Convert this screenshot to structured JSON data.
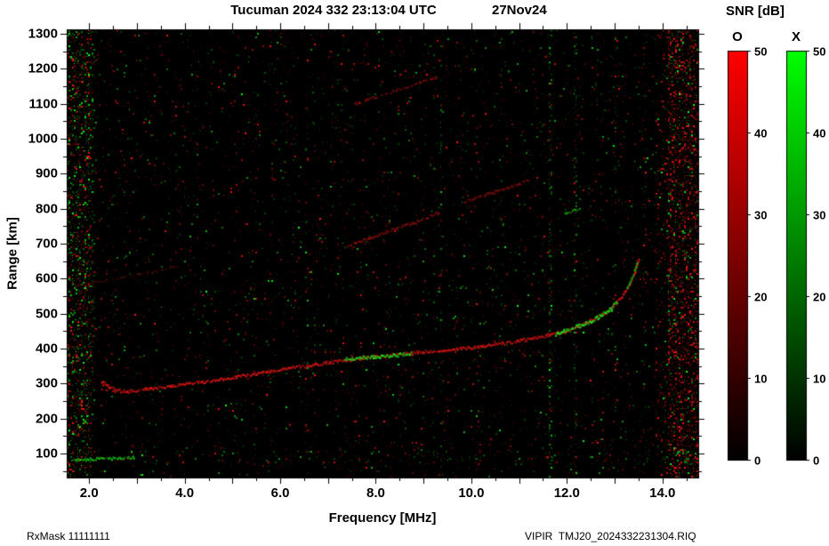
{
  "header": {
    "title": "Tucuman 2024 332 23:13:04 UTC",
    "date": "27Nov24"
  },
  "footer": {
    "left": "RxMask 11111111",
    "right": "VIPIR  TMJ20_2024332231304.RIQ"
  },
  "colorbar": {
    "title": "SNR [dB]",
    "range": [
      0,
      50
    ],
    "ticks": [
      "0",
      "10",
      "20",
      "30",
      "40",
      "50"
    ],
    "bars": [
      {
        "label": "O",
        "color": "#ff0000"
      },
      {
        "label": "X",
        "color": "#00ff00"
      }
    ]
  },
  "chart_data": {
    "type": "heatmap",
    "title": "Tucuman 2024 332 23:13:04 UTC",
    "subtitle": "27Nov24",
    "xlabel": "Frequency [MHz]",
    "ylabel": "Range [km]",
    "xlim": [
      1.53,
      14.75
    ],
    "ylim": [
      31,
      1313
    ],
    "x_ticks": [
      {
        "v": 2,
        "label": "2.0"
      },
      {
        "v": 4,
        "label": "4.0"
      },
      {
        "v": 6,
        "label": "6.0"
      },
      {
        "v": 8,
        "label": "8.0"
      },
      {
        "v": 10,
        "label": "10.0"
      },
      {
        "v": 12,
        "label": "12.0"
      },
      {
        "v": 14,
        "label": "14.0"
      }
    ],
    "x_minor_step": 0.5,
    "x_major_step": 1.0,
    "y_ticks": [
      {
        "v": 100,
        "label": "100"
      },
      {
        "v": 200,
        "label": "200"
      },
      {
        "v": 300,
        "label": "300"
      },
      {
        "v": 400,
        "label": "400"
      },
      {
        "v": 500,
        "label": "500"
      },
      {
        "v": 600,
        "label": "600"
      },
      {
        "v": 700,
        "label": "700"
      },
      {
        "v": 800,
        "label": "800"
      },
      {
        "v": 900,
        "label": "900"
      },
      {
        "v": 1000,
        "label": "1000"
      },
      {
        "v": 1100,
        "label": "1100"
      },
      {
        "v": 1200,
        "label": "1200"
      },
      {
        "v": 1300,
        "label": "1300"
      }
    ],
    "y_minor_step": 50,
    "background": "#000000",
    "modes": {
      "O": "#ff2020",
      "X": "#20ff20"
    },
    "traces": [
      {
        "name": "F-layer-O-main",
        "mode": "O",
        "width": 3.5,
        "intensity": 0.92,
        "density": 0.95,
        "points": [
          [
            2.25,
            308
          ],
          [
            2.4,
            292
          ],
          [
            2.6,
            281
          ],
          [
            2.85,
            280
          ],
          [
            3.1,
            285
          ],
          [
            3.6,
            293
          ],
          [
            4.0,
            300
          ],
          [
            4.5,
            309
          ],
          [
            5.0,
            319
          ],
          [
            5.5,
            330
          ],
          [
            6.0,
            341
          ],
          [
            6.5,
            352
          ],
          [
            7.0,
            362
          ],
          [
            7.5,
            371
          ],
          [
            8.0,
            379
          ],
          [
            8.5,
            386
          ],
          [
            9.0,
            392
          ],
          [
            9.5,
            398
          ],
          [
            10.0,
            405
          ],
          [
            10.5,
            414
          ],
          [
            11.0,
            424
          ],
          [
            11.5,
            437
          ],
          [
            11.9,
            450
          ],
          [
            12.2,
            464
          ],
          [
            12.5,
            482
          ],
          [
            12.8,
            505
          ],
          [
            13.0,
            528
          ],
          [
            13.15,
            552
          ],
          [
            13.3,
            585
          ],
          [
            13.42,
            622
          ],
          [
            13.5,
            658
          ]
        ]
      },
      {
        "name": "F-layer-O-leading-blob",
        "mode": "O",
        "width": 8,
        "intensity": 0.8,
        "density": 0.75,
        "points": [
          [
            2.25,
            295
          ],
          [
            2.55,
            283
          ]
        ]
      },
      {
        "name": "F-layer-X-mid-segment",
        "mode": "X",
        "width": 4,
        "intensity": 1.0,
        "density": 0.95,
        "points": [
          [
            7.35,
            372
          ],
          [
            7.7,
            376
          ],
          [
            8.1,
            380
          ],
          [
            8.5,
            384
          ],
          [
            8.75,
            387
          ]
        ]
      },
      {
        "name": "F-layer-X-cusp-segment",
        "mode": "X",
        "width": 4.5,
        "intensity": 1.0,
        "density": 0.95,
        "points": [
          [
            11.75,
            443
          ],
          [
            12.05,
            456
          ],
          [
            12.35,
            472
          ],
          [
            12.6,
            488
          ],
          [
            12.85,
            510
          ],
          [
            13.05,
            535
          ]
        ]
      },
      {
        "name": "F-layer-X-cusp-top",
        "mode": "X",
        "width": 3,
        "intensity": 0.8,
        "density": 0.7,
        "points": [
          [
            13.25,
            575
          ],
          [
            13.38,
            615
          ],
          [
            13.47,
            650
          ]
        ]
      },
      {
        "name": "second-hop-O-a",
        "mode": "O",
        "width": 3,
        "intensity": 0.6,
        "density": 0.7,
        "points": [
          [
            7.4,
            698
          ],
          [
            7.9,
            720
          ],
          [
            8.4,
            745
          ],
          [
            8.9,
            768
          ],
          [
            9.35,
            795
          ]
        ]
      },
      {
        "name": "second-hop-O-b",
        "mode": "O",
        "width": 2.5,
        "intensity": 0.5,
        "density": 0.6,
        "points": [
          [
            9.85,
            822
          ],
          [
            10.3,
            843
          ],
          [
            10.75,
            862
          ],
          [
            11.2,
            885
          ]
        ]
      },
      {
        "name": "second-hop-X-spot",
        "mode": "X",
        "width": 3,
        "intensity": 0.75,
        "density": 0.6,
        "points": [
          [
            11.95,
            790
          ],
          [
            12.3,
            805
          ]
        ]
      },
      {
        "name": "third-hop-O",
        "mode": "O",
        "width": 2.5,
        "intensity": 0.55,
        "density": 0.65,
        "points": [
          [
            7.55,
            1102
          ],
          [
            8.0,
            1122
          ],
          [
            8.45,
            1143
          ],
          [
            8.9,
            1163
          ],
          [
            9.3,
            1180
          ]
        ]
      },
      {
        "name": "oblique-faint-left",
        "mode": "O",
        "width": 2,
        "intensity": 0.3,
        "density": 0.5,
        "points": [
          [
            1.75,
            583
          ],
          [
            2.4,
            598
          ],
          [
            3.1,
            616
          ],
          [
            3.9,
            638
          ]
        ]
      },
      {
        "name": "Es-X-bottom",
        "mode": "X",
        "width": 3,
        "intensity": 0.85,
        "density": 0.8,
        "points": [
          [
            1.6,
            82
          ],
          [
            2.1,
            86
          ],
          [
            2.6,
            88
          ],
          [
            2.95,
            90
          ]
        ]
      }
    ],
    "interference_stripes": [
      {
        "f": 2.08,
        "w": 0.03,
        "boost": 0.2,
        "mode": "X"
      },
      {
        "f": 6.55,
        "w": 0.03,
        "boost": 0.08,
        "mode": "O"
      },
      {
        "f": 9.35,
        "w": 0.03,
        "boost": 0.2,
        "mode": "X"
      },
      {
        "f": 10.62,
        "w": 0.03,
        "boost": 0.1,
        "mode": "X"
      },
      {
        "f": 11.63,
        "w": 0.04,
        "boost": 0.3,
        "mode": "X"
      },
      {
        "f": 12.17,
        "w": 0.04,
        "boost": 0.2,
        "mode": "X"
      },
      {
        "f": 12.52,
        "w": 0.03,
        "boost": 0.1,
        "mode": "O"
      },
      {
        "f": 13.0,
        "w": 0.03,
        "boost": 0.08,
        "mode": "O"
      },
      {
        "f": 13.62,
        "w": 0.04,
        "boost": 0.12,
        "mode": "O"
      }
    ],
    "noise": {
      "base": 0.055,
      "bands": [
        {
          "f0": 1.53,
          "f1": 2.02,
          "boost": 0.3,
          "red_bias": 0.5,
          "bright": 0.5
        },
        {
          "f0": 13.85,
          "f1": 14.1,
          "boost": 0.1,
          "red_bias": 0.8,
          "bright": 0.3
        },
        {
          "f0": 14.1,
          "f1": 14.75,
          "boost": 0.4,
          "red_bias": 0.82,
          "bright": 0.45
        }
      ],
      "hbands": [
        {
          "r0": 70,
          "r1": 112,
          "boost": 0.05,
          "red_bias": 0.5
        }
      ]
    }
  }
}
